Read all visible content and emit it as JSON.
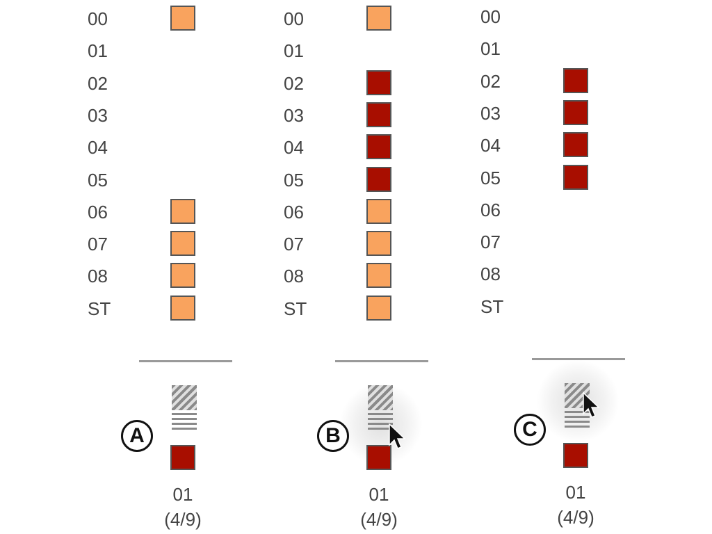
{
  "colors": {
    "light_cell": "#f9a35e",
    "dark_cell": "#a80e00",
    "divider": "#999999",
    "text": "#444444"
  },
  "panels": [
    {
      "rows": [
        {
          "label": "00",
          "cell": "light"
        },
        {
          "label": "01",
          "cell": "none"
        },
        {
          "label": "02",
          "cell": "none"
        },
        {
          "label": "03",
          "cell": "none"
        },
        {
          "label": "04",
          "cell": "none"
        },
        {
          "label": "05",
          "cell": "none"
        },
        {
          "label": "06",
          "cell": "light"
        },
        {
          "label": "07",
          "cell": "light"
        },
        {
          "label": "08",
          "cell": "light"
        },
        {
          "label": "ST",
          "cell": "light"
        }
      ],
      "badge": "A",
      "cursor": "none",
      "caption_id": "01",
      "caption_count": "(4/9)"
    },
    {
      "rows": [
        {
          "label": "00",
          "cell": "light"
        },
        {
          "label": "01",
          "cell": "none"
        },
        {
          "label": "02",
          "cell": "dark"
        },
        {
          "label": "03",
          "cell": "dark"
        },
        {
          "label": "04",
          "cell": "dark"
        },
        {
          "label": "05",
          "cell": "dark"
        },
        {
          "label": "06",
          "cell": "light"
        },
        {
          "label": "07",
          "cell": "light"
        },
        {
          "label": "08",
          "cell": "light"
        },
        {
          "label": "ST",
          "cell": "light"
        }
      ],
      "badge": "B",
      "cursor": "lines",
      "caption_id": "01",
      "caption_count": "(4/9)"
    },
    {
      "rows": [
        {
          "label": "00",
          "cell": "none"
        },
        {
          "label": "01",
          "cell": "none"
        },
        {
          "label": "02",
          "cell": "dark"
        },
        {
          "label": "03",
          "cell": "dark"
        },
        {
          "label": "04",
          "cell": "dark"
        },
        {
          "label": "05",
          "cell": "dark"
        },
        {
          "label": "06",
          "cell": "none"
        },
        {
          "label": "07",
          "cell": "none"
        },
        {
          "label": "08",
          "cell": "none"
        },
        {
          "label": "ST",
          "cell": "none"
        }
      ],
      "badge": "C",
      "cursor": "hatch",
      "caption_id": "01",
      "caption_count": "(4/9)"
    }
  ]
}
